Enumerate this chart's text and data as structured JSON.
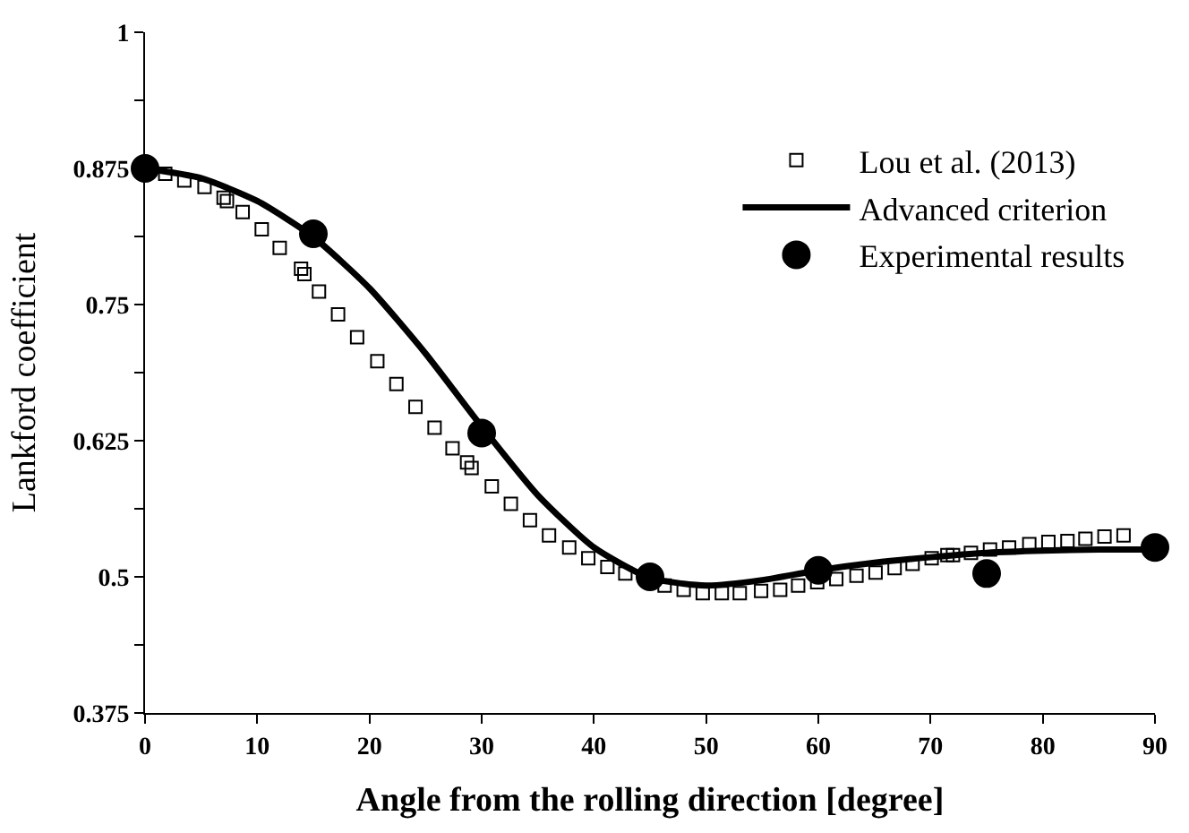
{
  "chart_data": {
    "type": "scatter",
    "xlabel": "Angle from the rolling direction [degree]",
    "ylabel": "Lankford coefficient",
    "xlim": [
      0,
      90
    ],
    "xticks": [
      0,
      10,
      20,
      30,
      40,
      50,
      60,
      70,
      80,
      90
    ],
    "ylim": [
      0.375,
      1
    ],
    "yticks": [
      0.375,
      {
        "value": 0.4375,
        "label": null
      },
      0.5,
      {
        "value": 0.5625,
        "label": null
      },
      0.625,
      {
        "value": 0.6875,
        "label": null
      },
      0.75,
      {
        "value": 0.8125,
        "label": null
      },
      0.875,
      {
        "value": 0.9375,
        "label": null
      },
      1
    ],
    "legend": "top right",
    "series": [
      {
        "name": "Lou et al. (2013)",
        "marker": "square",
        "color": "#000000",
        "x": [
          1.8,
          3.5,
          5.3,
          7.0,
          7.3,
          8.7,
          10.4,
          12.0,
          13.9,
          14.2,
          15.5,
          17.2,
          18.9,
          20.7,
          22.4,
          24.1,
          25.8,
          27.4,
          28.7,
          29.1,
          30.9,
          32.6,
          34.3,
          36.0,
          37.8,
          39.5,
          41.2,
          42.8,
          44.7,
          46.3,
          48.0,
          49.7,
          51.4,
          53.0,
          54.9,
          56.6,
          58.2,
          59.9,
          61.6,
          63.4,
          65.1,
          66.8,
          68.4,
          70.1,
          71.5,
          72.0,
          73.6,
          75.3,
          77.0,
          78.8,
          80.5,
          82.2,
          83.8,
          85.5,
          87.2
        ],
        "values": [
          0.87,
          0.864,
          0.858,
          0.848,
          0.845,
          0.835,
          0.819,
          0.802,
          0.783,
          0.778,
          0.762,
          0.741,
          0.72,
          0.698,
          0.677,
          0.656,
          0.637,
          0.618,
          0.605,
          0.6,
          0.583,
          0.567,
          0.552,
          0.538,
          0.527,
          0.517,
          0.509,
          0.503,
          null,
          0.492,
          0.488,
          0.485,
          0.485,
          0.485,
          0.487,
          0.488,
          0.492,
          0.495,
          0.498,
          0.501,
          0.504,
          0.508,
          0.512,
          0.517,
          0.52,
          0.52,
          0.522,
          0.525,
          0.527,
          0.53,
          0.532,
          0.533,
          0.535,
          0.537,
          0.538
        ]
      },
      {
        "name": "Advanced criterion",
        "type": "line",
        "marker": "none",
        "line_style": "solid",
        "color": "#000000",
        "x": [
          0,
          5,
          10,
          15,
          20,
          25,
          30,
          35,
          40,
          45,
          50,
          55,
          60,
          65,
          70,
          75,
          80,
          85,
          90
        ],
        "values": [
          0.875,
          0.866,
          0.845,
          0.812,
          0.765,
          0.705,
          0.638,
          0.575,
          0.527,
          0.499,
          0.492,
          0.497,
          0.506,
          0.513,
          0.518,
          0.522,
          0.524,
          0.525,
          0.525
        ]
      },
      {
        "name": "Experimental results",
        "marker": "circle",
        "color": "#000000",
        "x": [
          0,
          15,
          30,
          45,
          60,
          75,
          90
        ],
        "values": [
          0.875,
          0.815,
          0.632,
          0.5,
          0.506,
          0.503,
          0.527
        ]
      }
    ]
  }
}
